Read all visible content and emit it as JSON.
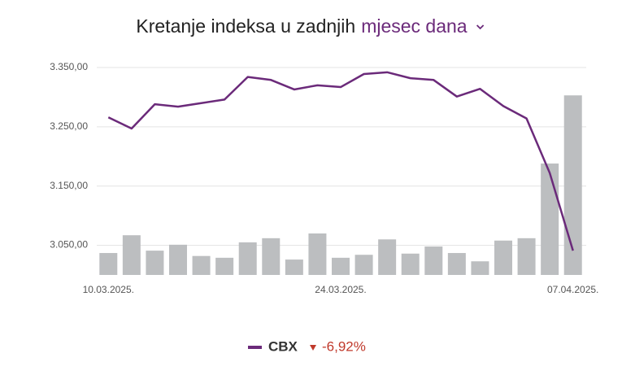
{
  "chart_data": {
    "type": "combo",
    "title": "Kretanje indeksa u zadnjih",
    "period": "mjesec dana",
    "categories": [
      "10.03.2025.",
      null,
      null,
      null,
      null,
      null,
      null,
      null,
      null,
      null,
      "24.03.2025.",
      null,
      null,
      null,
      null,
      null,
      null,
      null,
      null,
      null,
      "07.04.2025."
    ],
    "ylim": [
      3000,
      3350
    ],
    "yticks": [
      {
        "value": 3050,
        "label": "3.050,00"
      },
      {
        "value": 3150,
        "label": "3.150,00"
      },
      {
        "value": 3250,
        "label": "3.250,00"
      },
      {
        "value": 3350,
        "label": "3.350,00"
      }
    ],
    "grid": true,
    "series": [
      {
        "type": "bar",
        "color": "#bcbec0",
        "values": [
          3037,
          3067,
          3041,
          3051,
          3032,
          3029,
          3055,
          3062,
          3026,
          3070,
          3029,
          3034,
          3060,
          3036,
          3048,
          3037,
          3023,
          3058,
          3062,
          3188,
          3303
        ]
      },
      {
        "type": "line",
        "name": "CBX",
        "color": "#6b2a7a",
        "values": [
          3266,
          3247,
          3288,
          3284,
          3290,
          3296,
          3334,
          3329,
          3313,
          3320,
          3317,
          3339,
          3342,
          3332,
          3329,
          3301,
          3314,
          3285,
          3264,
          3172,
          3041
        ]
      }
    ],
    "change": "-6,92%"
  }
}
